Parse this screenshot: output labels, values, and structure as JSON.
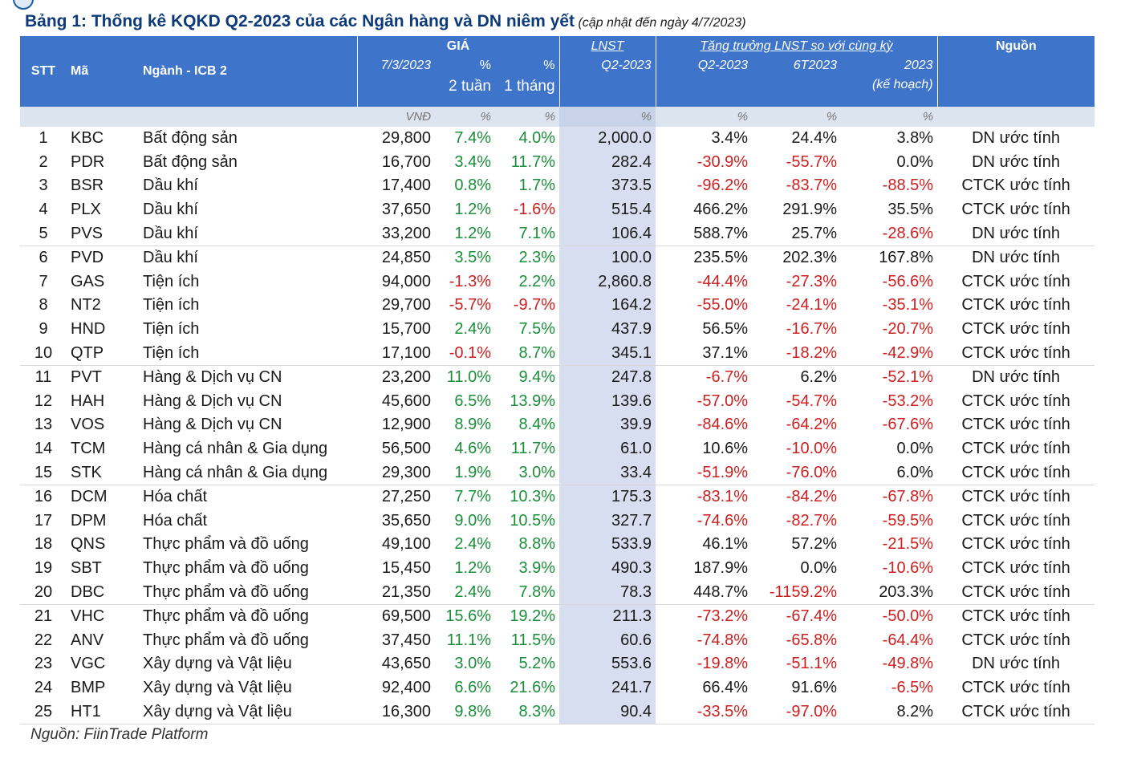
{
  "title": {
    "main": "Bảng 1: Thống kê KQKD Q2-2023 của các Ngân hàng và DN niêm yết",
    "sub": "(cập nhật đến ngày 4/7/2023)"
  },
  "header": {
    "stt": "STT",
    "ma": "Mã",
    "nganh": "Ngành - ICB 2",
    "gia_group": "GIÁ",
    "gia_date": "7/3/2023",
    "pct": "%",
    "pct_2w": "2 tuần",
    "pct_1m": "1 tháng",
    "lnst": "LNST",
    "lnst_q2": "Q2-2023",
    "growth_group": "Tăng trưởng LNST so với cùng kỳ",
    "g_q2": "Q2-2023",
    "g_6t": "6T2023",
    "g_2023": "2023",
    "g_2023_note": "(kế hoạch)",
    "source": "Nguồn"
  },
  "units": {
    "gia": "VNĐ",
    "p2w": "%",
    "p1m": "%",
    "lnst": "%",
    "gq2": "%",
    "g6t": "%",
    "g2023": "%"
  },
  "colors": {
    "header_bg": "#3e74c9",
    "lnst_col_bg": "#d6def0",
    "positive": "#1a8f3a",
    "negative": "#cc1f1f"
  },
  "rows": [
    {
      "stt": "1",
      "ma": "KBC",
      "nganh": "Bất động sản",
      "gia": "29,800",
      "p2w": "7.4%",
      "p1m": "4.0%",
      "lnst": "2,000.0",
      "gq2": "3.4%",
      "g6t": "24.4%",
      "g2023": "3.8%",
      "nguon": "DN ước tính"
    },
    {
      "stt": "2",
      "ma": "PDR",
      "nganh": "Bất động sản",
      "gia": "16,700",
      "p2w": "3.4%",
      "p1m": "11.7%",
      "lnst": "282.4",
      "gq2": "-30.9%",
      "g6t": "-55.7%",
      "g2023": "0.0%",
      "nguon": "DN ước tính"
    },
    {
      "stt": "3",
      "ma": "BSR",
      "nganh": "Dầu khí",
      "gia": "17,400",
      "p2w": "0.8%",
      "p1m": "1.7%",
      "lnst": "373.5",
      "gq2": "-96.2%",
      "g6t": "-83.7%",
      "g2023": "-88.5%",
      "nguon": "CTCK ước tính"
    },
    {
      "stt": "4",
      "ma": "PLX",
      "nganh": "Dầu khí",
      "gia": "37,650",
      "p2w": "1.2%",
      "p1m": "-1.6%",
      "lnst": "515.4",
      "gq2": "466.2%",
      "g6t": "291.9%",
      "g2023": "35.5%",
      "nguon": "CTCK ước tính"
    },
    {
      "stt": "5",
      "ma": "PVS",
      "nganh": "Dầu khí",
      "gia": "33,200",
      "p2w": "1.2%",
      "p1m": "7.1%",
      "lnst": "106.4",
      "gq2": "588.7%",
      "g6t": "25.7%",
      "g2023": "-28.6%",
      "nguon": "DN ước tính"
    },
    {
      "stt": "6",
      "ma": "PVD",
      "nganh": "Dầu khí",
      "gia": "24,850",
      "p2w": "3.5%",
      "p1m": "2.3%",
      "lnst": "100.0",
      "gq2": "235.5%",
      "g6t": "202.3%",
      "g2023": "167.8%",
      "nguon": "DN ước tính"
    },
    {
      "stt": "7",
      "ma": "GAS",
      "nganh": "Tiện ích",
      "gia": "94,000",
      "p2w": "-1.3%",
      "p1m": "2.2%",
      "lnst": "2,860.8",
      "gq2": "-44.4%",
      "g6t": "-27.3%",
      "g2023": "-56.6%",
      "nguon": "CTCK ước tính"
    },
    {
      "stt": "8",
      "ma": "NT2",
      "nganh": "Tiện ích",
      "gia": "29,700",
      "p2w": "-5.7%",
      "p1m": "-9.7%",
      "lnst": "164.2",
      "gq2": "-55.0%",
      "g6t": "-24.1%",
      "g2023": "-35.1%",
      "nguon": "CTCK ước tính"
    },
    {
      "stt": "9",
      "ma": "HND",
      "nganh": "Tiện ích",
      "gia": "15,700",
      "p2w": "2.4%",
      "p1m": "7.5%",
      "lnst": "437.9",
      "gq2": "56.5%",
      "g6t": "-16.7%",
      "g2023": "-20.7%",
      "nguon": "CTCK ước tính"
    },
    {
      "stt": "10",
      "ma": "QTP",
      "nganh": "Tiện ích",
      "gia": "17,100",
      "p2w": "-0.1%",
      "p1m": "8.7%",
      "lnst": "345.1",
      "gq2": "37.1%",
      "g6t": "-18.2%",
      "g2023": "-42.9%",
      "nguon": "CTCK ước tính"
    },
    {
      "stt": "11",
      "ma": "PVT",
      "nganh": "Hàng & Dịch vụ CN",
      "gia": "23,200",
      "p2w": "11.0%",
      "p1m": "9.4%",
      "lnst": "247.8",
      "gq2": "-6.7%",
      "g6t": "6.2%",
      "g2023": "-52.1%",
      "nguon": "DN ước tính"
    },
    {
      "stt": "12",
      "ma": "HAH",
      "nganh": "Hàng & Dịch vụ CN",
      "gia": "45,600",
      "p2w": "6.5%",
      "p1m": "13.9%",
      "lnst": "139.6",
      "gq2": "-57.0%",
      "g6t": "-54.7%",
      "g2023": "-53.2%",
      "nguon": "CTCK ước tính"
    },
    {
      "stt": "13",
      "ma": "VOS",
      "nganh": "Hàng & Dịch vụ CN",
      "gia": "12,900",
      "p2w": "8.9%",
      "p1m": "8.4%",
      "lnst": "39.9",
      "gq2": "-84.6%",
      "g6t": "-64.2%",
      "g2023": "-67.6%",
      "nguon": "CTCK ước tính"
    },
    {
      "stt": "14",
      "ma": "TCM",
      "nganh": "Hàng cá nhân & Gia dụng",
      "gia": "56,500",
      "p2w": "4.6%",
      "p1m": "11.7%",
      "lnst": "61.0",
      "gq2": "10.6%",
      "g6t": "-10.0%",
      "g2023": "0.0%",
      "nguon": "CTCK ước tính"
    },
    {
      "stt": "15",
      "ma": "STK",
      "nganh": "Hàng cá nhân & Gia dụng",
      "gia": "29,300",
      "p2w": "1.9%",
      "p1m": "3.0%",
      "lnst": "33.4",
      "gq2": "-51.9%",
      "g6t": "-76.0%",
      "g2023": "6.0%",
      "nguon": "CTCK ước tính"
    },
    {
      "stt": "16",
      "ma": "DCM",
      "nganh": "Hóa chất",
      "gia": "27,250",
      "p2w": "7.7%",
      "p1m": "10.3%",
      "lnst": "175.3",
      "gq2": "-83.1%",
      "g6t": "-84.2%",
      "g2023": "-67.8%",
      "nguon": "CTCK ước tính"
    },
    {
      "stt": "17",
      "ma": "DPM",
      "nganh": "Hóa chất",
      "gia": "35,650",
      "p2w": "9.0%",
      "p1m": "10.5%",
      "lnst": "327.7",
      "gq2": "-74.6%",
      "g6t": "-82.7%",
      "g2023": "-59.5%",
      "nguon": "CTCK ước tính"
    },
    {
      "stt": "18",
      "ma": "QNS",
      "nganh": "Thực phẩm và đồ uống",
      "gia": "49,100",
      "p2w": "2.4%",
      "p1m": "8.8%",
      "lnst": "533.9",
      "gq2": "46.1%",
      "g6t": "57.2%",
      "g2023": "-21.5%",
      "nguon": "CTCK ước tính"
    },
    {
      "stt": "19",
      "ma": "SBT",
      "nganh": "Thực phẩm và đồ uống",
      "gia": "15,450",
      "p2w": "1.2%",
      "p1m": "3.9%",
      "lnst": "490.3",
      "gq2": "187.9%",
      "g6t": "0.0%",
      "g2023": "-10.6%",
      "nguon": "CTCK ước tính"
    },
    {
      "stt": "20",
      "ma": "DBC",
      "nganh": "Thực phẩm và đồ uống",
      "gia": "21,350",
      "p2w": "2.4%",
      "p1m": "7.8%",
      "lnst": "78.3",
      "gq2": "448.7%",
      "g6t": "-1159.2%",
      "g2023": "203.3%",
      "nguon": "CTCK ước tính"
    },
    {
      "stt": "21",
      "ma": "VHC",
      "nganh": "Thực phẩm và đồ uống",
      "gia": "69,500",
      "p2w": "15.6%",
      "p1m": "19.2%",
      "lnst": "211.3",
      "gq2": "-73.2%",
      "g6t": "-67.4%",
      "g2023": "-50.0%",
      "nguon": "CTCK ước tính"
    },
    {
      "stt": "22",
      "ma": "ANV",
      "nganh": "Thực phẩm và đồ uống",
      "gia": "37,450",
      "p2w": "11.1%",
      "p1m": "11.5%",
      "lnst": "60.6",
      "gq2": "-74.8%",
      "g6t": "-65.8%",
      "g2023": "-64.4%",
      "nguon": "CTCK ước tính"
    },
    {
      "stt": "23",
      "ma": "VGC",
      "nganh": "Xây dựng và Vật liệu",
      "gia": "43,650",
      "p2w": "3.0%",
      "p1m": "5.2%",
      "lnst": "553.6",
      "gq2": "-19.8%",
      "g6t": "-51.1%",
      "g2023": "-49.8%",
      "nguon": "DN ước tính"
    },
    {
      "stt": "24",
      "ma": "BMP",
      "nganh": "Xây dựng và Vật liệu",
      "gia": "92,400",
      "p2w": "6.6%",
      "p1m": "21.6%",
      "lnst": "241.7",
      "gq2": "66.4%",
      "g6t": "91.6%",
      "g2023": "-6.5%",
      "nguon": "CTCK ước tính"
    },
    {
      "stt": "25",
      "ma": "HT1",
      "nganh": "Xây dựng và Vật liệu",
      "gia": "16,300",
      "p2w": "9.8%",
      "p1m": "8.3%",
      "lnst": "90.4",
      "gq2": "-33.5%",
      "g6t": "-97.0%",
      "g2023": "8.2%",
      "nguon": "CTCK ước tính"
    }
  ],
  "footer": {
    "source": "Nguồn: FiinTrade Platform"
  }
}
